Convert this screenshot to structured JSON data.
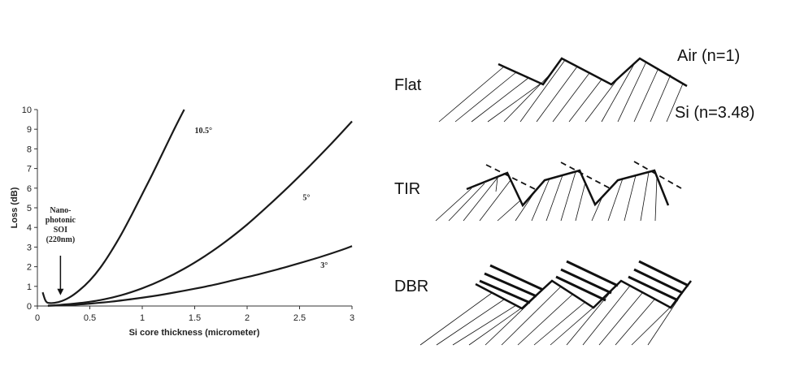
{
  "chart_data": {
    "type": "line",
    "xlabel": "Si core thickness (micrometer)",
    "ylabel": "Loss (dB)",
    "xlim": [
      0,
      3
    ],
    "ylim": [
      0,
      10
    ],
    "xticks": [
      "0",
      "0.5",
      "1",
      "1.5",
      "2",
      "2.5",
      "3"
    ],
    "yticks": [
      "0",
      "1",
      "2",
      "3",
      "4",
      "5",
      "6",
      "7",
      "8",
      "9",
      "10"
    ],
    "grid": false,
    "series": [
      {
        "name": "10.5°",
        "x": [
          0.05,
          0.08,
          0.12,
          0.2,
          0.3,
          0.4,
          0.5,
          0.6,
          0.7,
          0.8,
          0.9,
          1.0,
          1.1,
          1.2,
          1.3,
          1.4
        ],
        "y": [
          0.7,
          0.25,
          0.15,
          0.2,
          0.42,
          0.8,
          1.3,
          1.95,
          2.75,
          3.65,
          4.65,
          5.7,
          6.75,
          7.85,
          8.95,
          10.0
        ]
      },
      {
        "name": "5°",
        "x": [
          0.1,
          0.2,
          0.4,
          0.6,
          0.8,
          1.0,
          1.2,
          1.4,
          1.6,
          1.8,
          2.0,
          2.2,
          2.4,
          2.6,
          2.8,
          3.0
        ],
        "y": [
          0.02,
          0.05,
          0.15,
          0.3,
          0.55,
          0.9,
          1.35,
          1.9,
          2.55,
          3.3,
          4.15,
          5.1,
          6.1,
          7.15,
          8.25,
          9.4
        ]
      },
      {
        "name": "3°",
        "x": [
          0.1,
          0.3,
          0.5,
          0.7,
          0.9,
          1.1,
          1.3,
          1.5,
          1.7,
          1.9,
          2.1,
          2.3,
          2.5,
          2.7,
          2.9,
          3.0
        ],
        "y": [
          0.01,
          0.05,
          0.12,
          0.22,
          0.35,
          0.5,
          0.68,
          0.88,
          1.1,
          1.35,
          1.6,
          1.88,
          2.18,
          2.5,
          2.85,
          3.05
        ]
      }
    ],
    "annotations": {
      "callout_lines": [
        "Nano-",
        "photonic",
        "SOI",
        "(220nm)"
      ],
      "callout_x": 0.22,
      "callout_y": 0.3
    }
  },
  "diagram": {
    "rows": [
      "Flat",
      "TIR",
      "DBR"
    ],
    "air_label": "Air (n=1)",
    "si_label": "Si (n=3.48)"
  }
}
